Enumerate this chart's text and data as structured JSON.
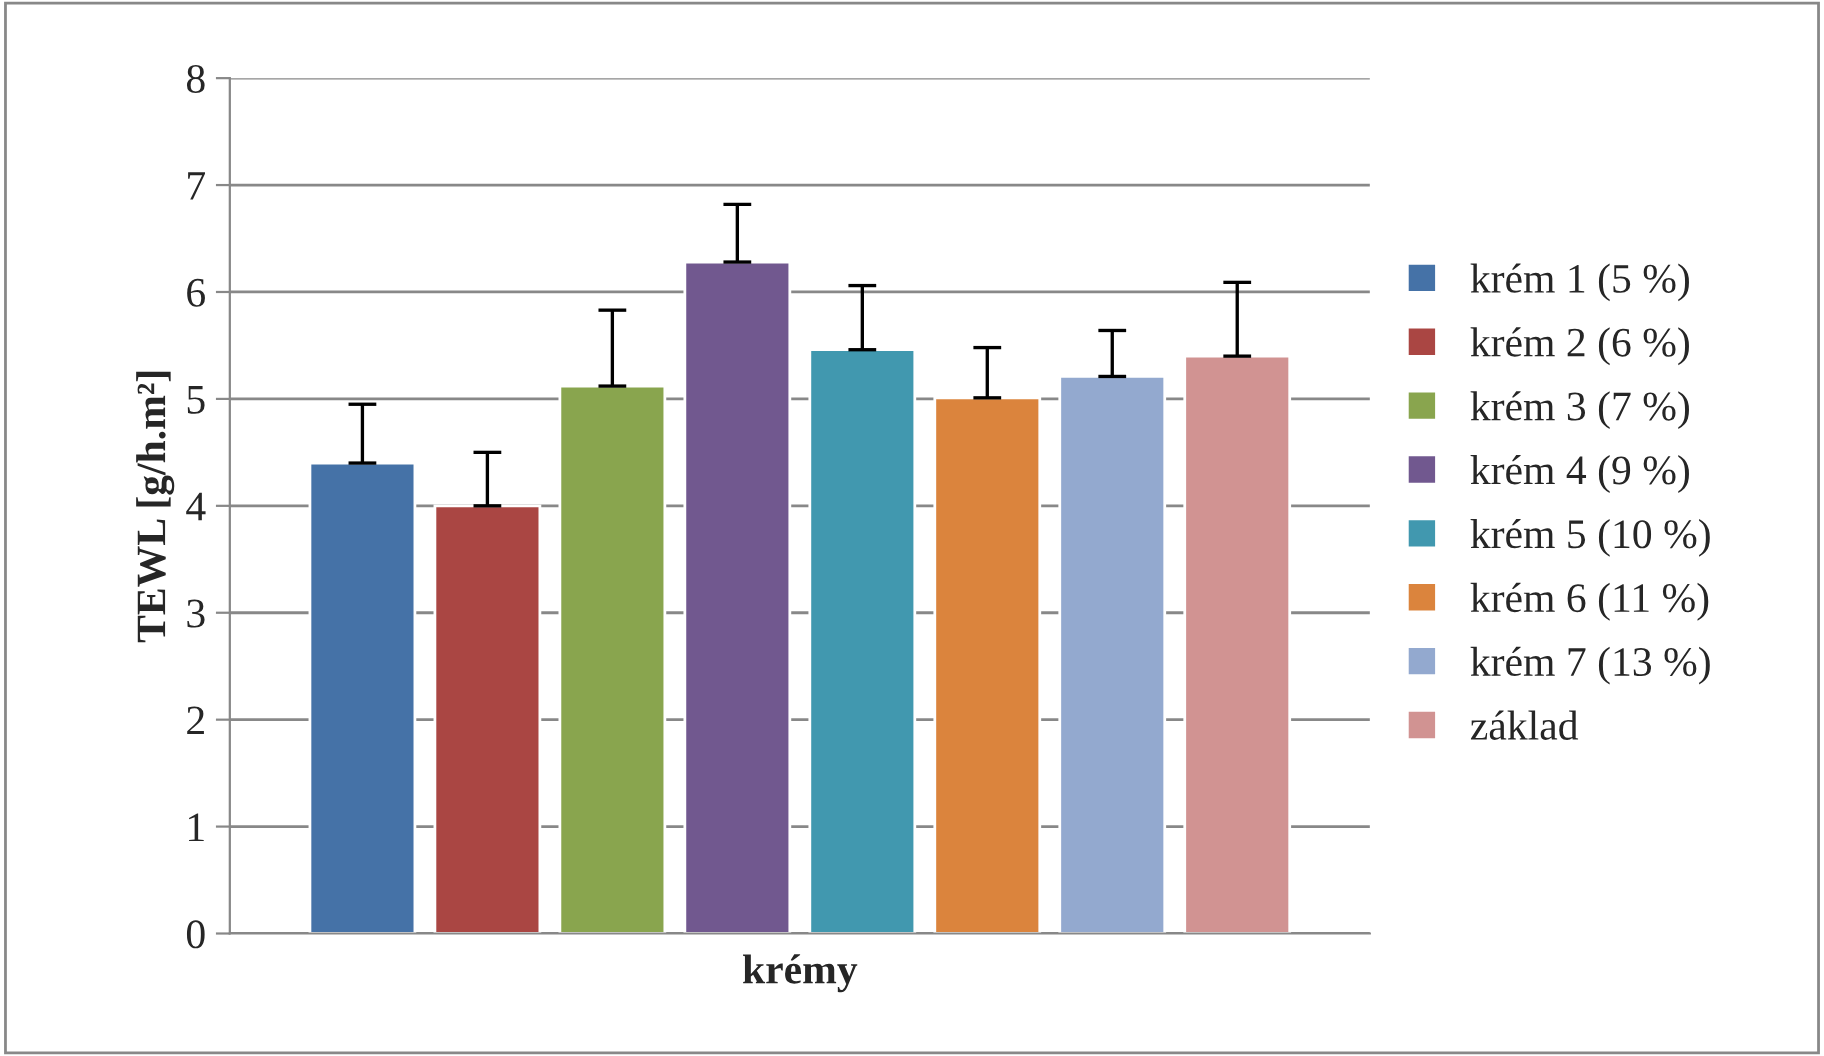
{
  "chart_data": {
    "type": "bar",
    "xlabel": "krémy",
    "ylabel": "TEWL [g/h.m²]",
    "categories": [
      null
    ],
    "series": [
      {
        "name": "krém 1 (5 %)",
        "color": "#4572a7",
        "values": [
          4.4
        ],
        "errors": [
          [
            4.4,
            4.95
          ]
        ]
      },
      {
        "name": "krém 2 (6 %)",
        "color": "#aa4643",
        "values": [
          4.0
        ],
        "errors": [
          [
            4.0,
            4.5
          ]
        ]
      },
      {
        "name": "krém 3 (7 %)",
        "color": "#89a54e",
        "values": [
          5.12
        ],
        "errors": [
          [
            5.12,
            5.83
          ]
        ]
      },
      {
        "name": "krém 4 (9 %)",
        "color": "#71588f",
        "values": [
          6.28
        ],
        "errors": [
          [
            6.28,
            6.82
          ]
        ]
      },
      {
        "name": "krém 5 (10 %)",
        "color": "#4198af",
        "values": [
          5.46
        ],
        "errors": [
          [
            5.46,
            6.06
          ]
        ]
      },
      {
        "name": "krém 6 (11 %)",
        "color": "#db843d",
        "values": [
          5.01
        ],
        "errors": [
          [
            5.01,
            5.48
          ]
        ]
      },
      {
        "name": "krém 7 (13 %)",
        "color": "#93a9cf",
        "values": [
          5.21
        ],
        "errors": [
          [
            5.21,
            5.64
          ]
        ]
      },
      {
        "name": "základ",
        "color": "#d19392",
        "values": [
          5.4
        ],
        "errors": [
          [
            5.4,
            6.09
          ]
        ]
      }
    ],
    "ylim": [
      0,
      8
    ],
    "yticks": [
      0,
      1,
      2,
      3,
      4,
      5,
      6,
      7,
      8
    ],
    "grid": "y",
    "legend": "right"
  }
}
